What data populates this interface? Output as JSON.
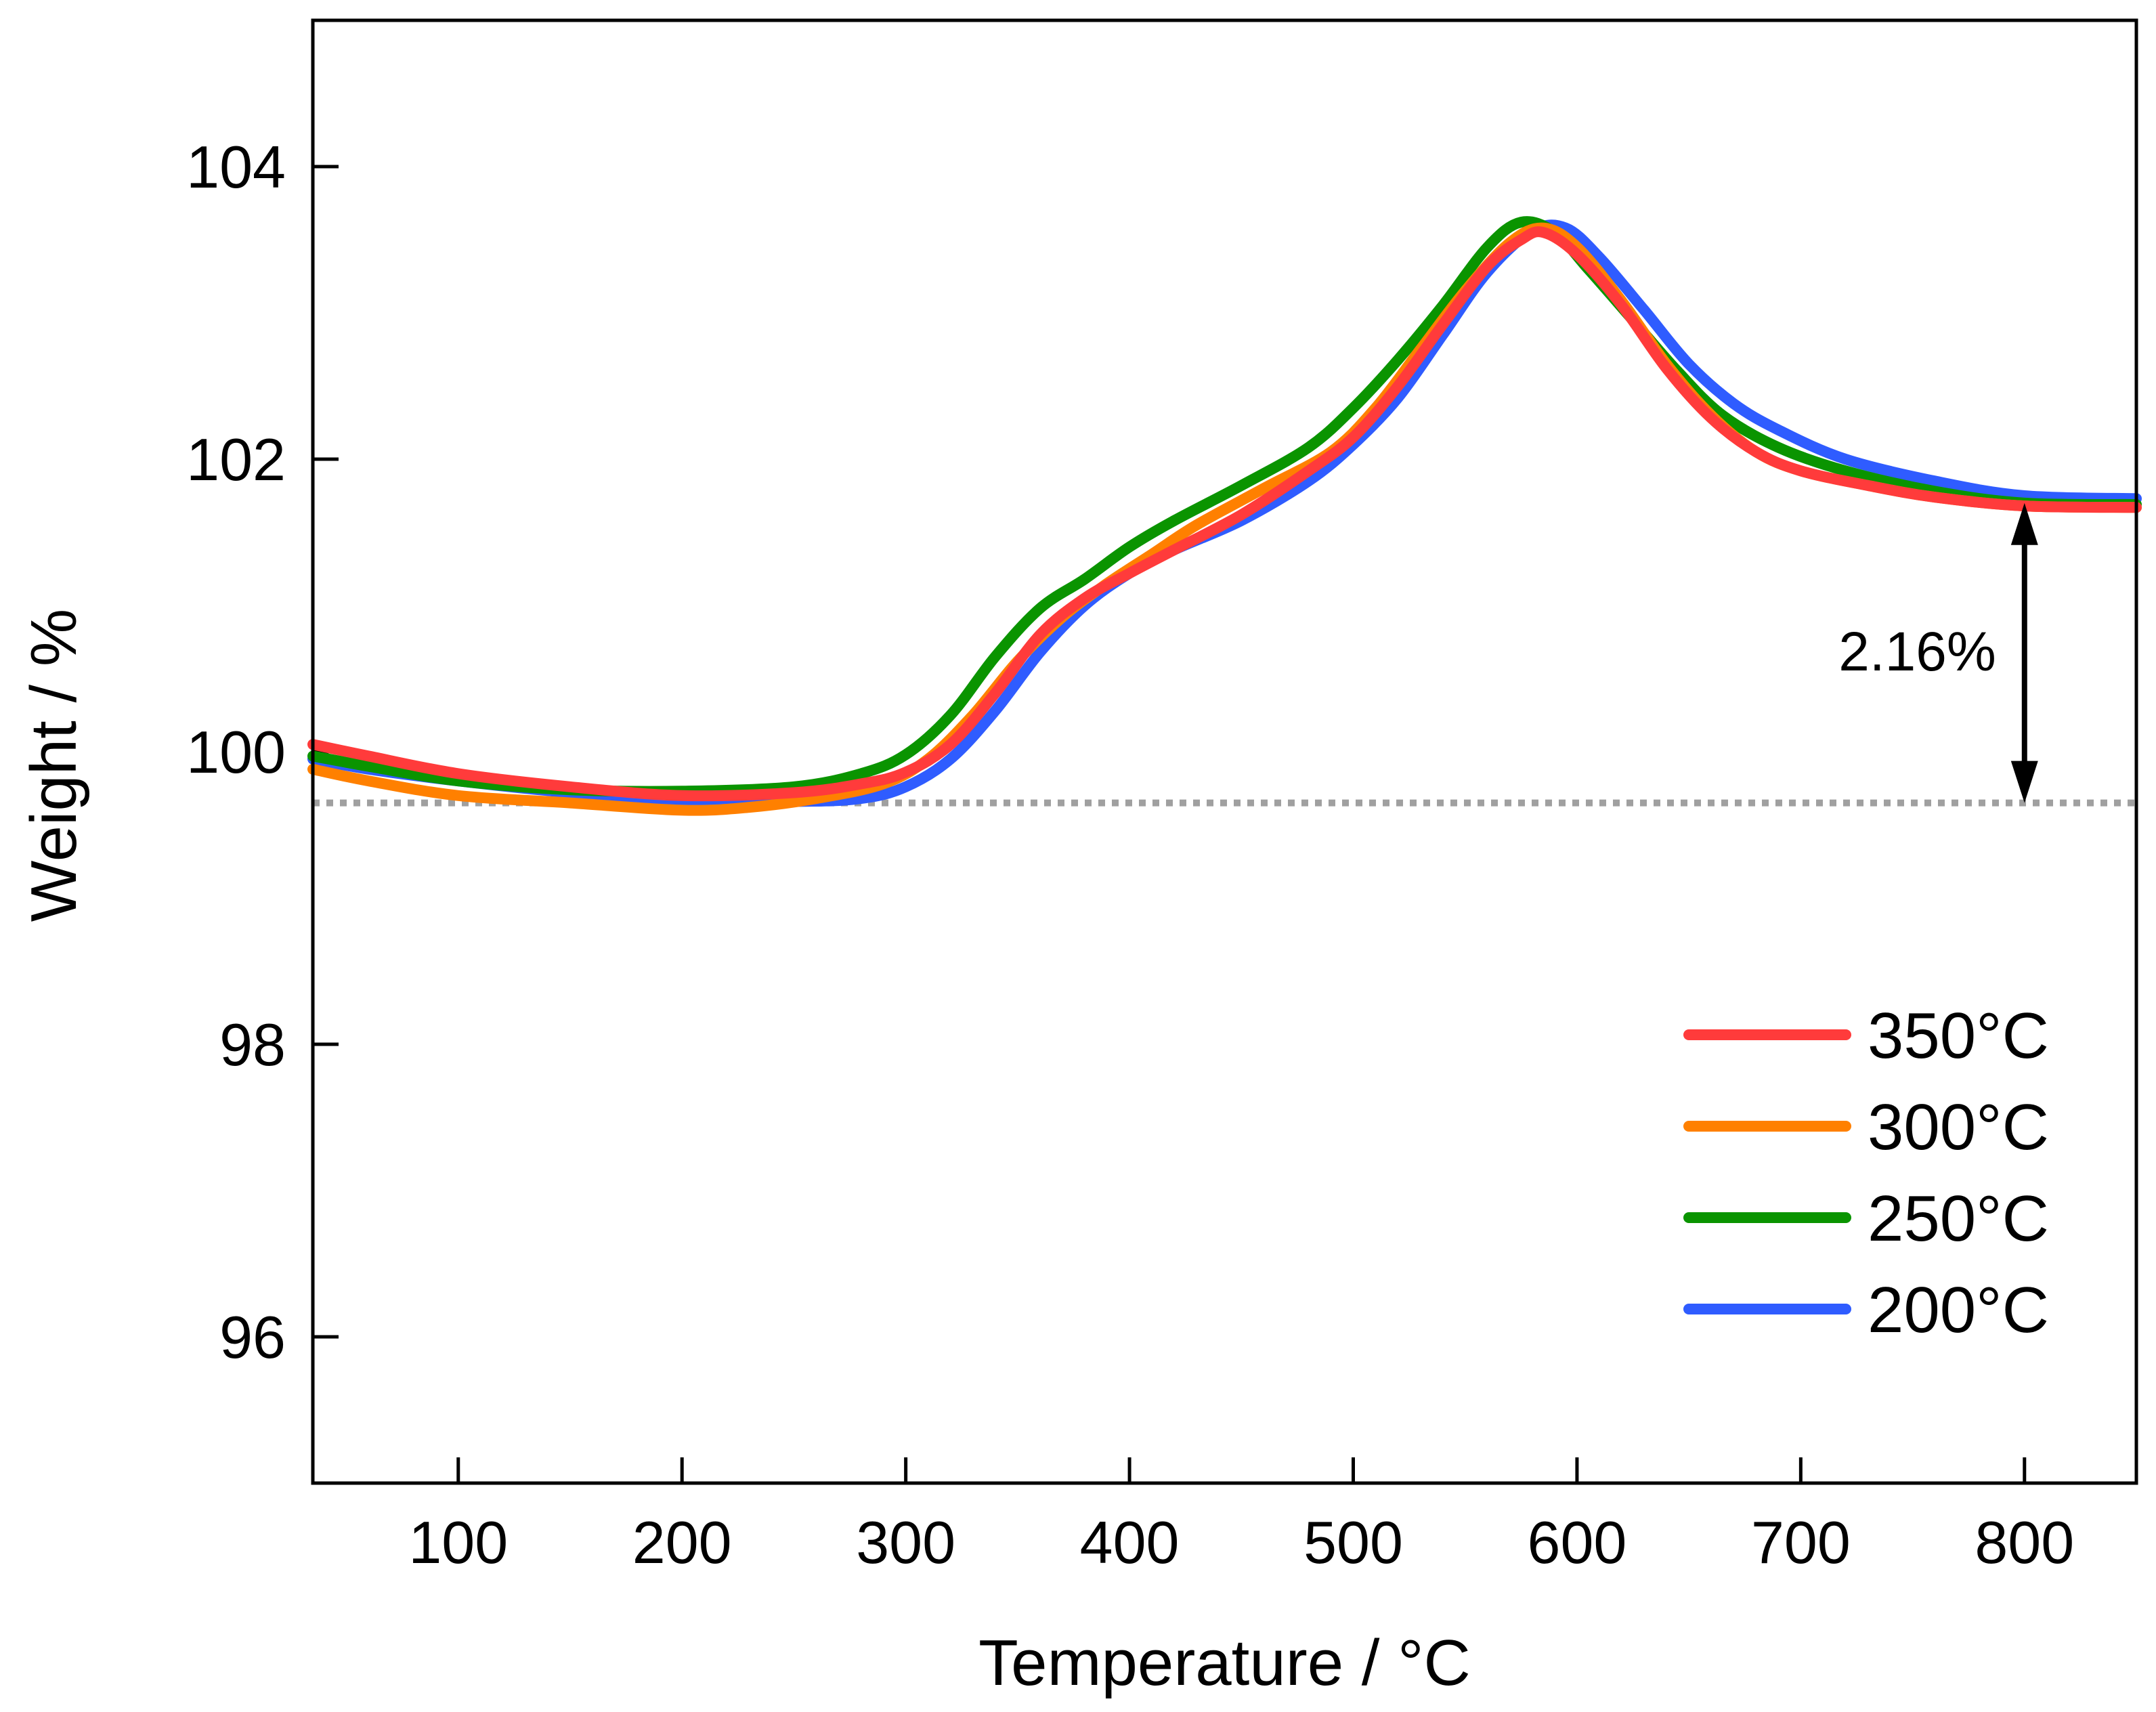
{
  "chart_data": {
    "type": "line",
    "title": "",
    "xlabel": "Temperature / °C",
    "ylabel": "Weight / %",
    "xlim": [
      35,
      850
    ],
    "ylim": [
      95,
      105
    ],
    "xticks": [
      100,
      200,
      300,
      400,
      500,
      600,
      700,
      800
    ],
    "yticks": [
      96,
      98,
      100,
      102,
      104
    ],
    "grid": false,
    "legend_position": "bottom-right",
    "reference_line": {
      "y": 99.65,
      "style": "dotted",
      "color": "#a0a0a0"
    },
    "annotation": {
      "text": "2.16%",
      "x": 800,
      "y_from": 99.65,
      "y_to": 101.7
    },
    "series": [
      {
        "name": "350°C",
        "color": "#ff3b3b",
        "points": [
          [
            35,
            100.05
          ],
          [
            60,
            99.97
          ],
          [
            100,
            99.85
          ],
          [
            150,
            99.76
          ],
          [
            200,
            99.7
          ],
          [
            250,
            99.72
          ],
          [
            280,
            99.78
          ],
          [
            300,
            99.86
          ],
          [
            320,
            100.05
          ],
          [
            340,
            100.4
          ],
          [
            360,
            100.8
          ],
          [
            380,
            101.05
          ],
          [
            400,
            101.22
          ],
          [
            420,
            101.38
          ],
          [
            450,
            101.62
          ],
          [
            480,
            101.92
          ],
          [
            500,
            102.15
          ],
          [
            520,
            102.5
          ],
          [
            540,
            102.92
          ],
          [
            560,
            103.32
          ],
          [
            575,
            103.5
          ],
          [
            585,
            103.55
          ],
          [
            600,
            103.4
          ],
          [
            620,
            103.05
          ],
          [
            640,
            102.62
          ],
          [
            660,
            102.28
          ],
          [
            680,
            102.05
          ],
          [
            700,
            101.92
          ],
          [
            730,
            101.82
          ],
          [
            760,
            101.74
          ],
          [
            800,
            101.68
          ],
          [
            850,
            101.67
          ]
        ]
      },
      {
        "name": "300°C",
        "color": "#ff8000",
        "points": [
          [
            35,
            99.88
          ],
          [
            60,
            99.8
          ],
          [
            100,
            99.7
          ],
          [
            150,
            99.65
          ],
          [
            200,
            99.6
          ],
          [
            230,
            99.62
          ],
          [
            260,
            99.68
          ],
          [
            290,
            99.78
          ],
          [
            310,
            99.95
          ],
          [
            330,
            100.25
          ],
          [
            350,
            100.62
          ],
          [
            370,
            100.92
          ],
          [
            390,
            101.15
          ],
          [
            410,
            101.35
          ],
          [
            430,
            101.55
          ],
          [
            460,
            101.8
          ],
          [
            490,
            102.05
          ],
          [
            510,
            102.35
          ],
          [
            530,
            102.75
          ],
          [
            550,
            103.15
          ],
          [
            570,
            103.48
          ],
          [
            585,
            103.58
          ],
          [
            600,
            103.45
          ],
          [
            620,
            103.08
          ],
          [
            640,
            102.65
          ],
          [
            660,
            102.3
          ],
          [
            680,
            102.05
          ],
          [
            700,
            101.92
          ],
          [
            730,
            101.82
          ],
          [
            760,
            101.74
          ],
          [
            800,
            101.68
          ],
          [
            850,
            101.67
          ]
        ]
      },
      {
        "name": "250°C",
        "color": "#0a9400",
        "points": [
          [
            35,
            99.97
          ],
          [
            60,
            99.9
          ],
          [
            100,
            99.8
          ],
          [
            150,
            99.74
          ],
          [
            200,
            99.73
          ],
          [
            250,
            99.76
          ],
          [
            280,
            99.85
          ],
          [
            300,
            99.98
          ],
          [
            320,
            100.25
          ],
          [
            340,
            100.65
          ],
          [
            360,
            100.98
          ],
          [
            380,
            101.18
          ],
          [
            400,
            101.4
          ],
          [
            420,
            101.58
          ],
          [
            450,
            101.82
          ],
          [
            480,
            102.08
          ],
          [
            500,
            102.35
          ],
          [
            520,
            102.68
          ],
          [
            540,
            103.05
          ],
          [
            560,
            103.45
          ],
          [
            575,
            103.62
          ],
          [
            590,
            103.55
          ],
          [
            605,
            103.3
          ],
          [
            625,
            102.95
          ],
          [
            645,
            102.6
          ],
          [
            665,
            102.3
          ],
          [
            690,
            102.08
          ],
          [
            720,
            101.92
          ],
          [
            760,
            101.78
          ],
          [
            800,
            101.7
          ],
          [
            850,
            101.69
          ]
        ]
      },
      {
        "name": "200°C",
        "color": "#2f5cff",
        "points": [
          [
            35,
            99.95
          ],
          [
            60,
            99.88
          ],
          [
            100,
            99.8
          ],
          [
            150,
            99.72
          ],
          [
            200,
            99.67
          ],
          [
            250,
            99.66
          ],
          [
            280,
            99.68
          ],
          [
            300,
            99.76
          ],
          [
            320,
            99.95
          ],
          [
            340,
            100.28
          ],
          [
            360,
            100.68
          ],
          [
            380,
            101.0
          ],
          [
            400,
            101.22
          ],
          [
            420,
            101.38
          ],
          [
            450,
            101.58
          ],
          [
            480,
            101.85
          ],
          [
            500,
            102.1
          ],
          [
            520,
            102.42
          ],
          [
            540,
            102.85
          ],
          [
            560,
            103.28
          ],
          [
            580,
            103.56
          ],
          [
            595,
            103.58
          ],
          [
            610,
            103.38
          ],
          [
            630,
            103.02
          ],
          [
            650,
            102.65
          ],
          [
            670,
            102.38
          ],
          [
            690,
            102.2
          ],
          [
            720,
            102.0
          ],
          [
            760,
            101.85
          ],
          [
            800,
            101.75
          ],
          [
            850,
            101.73
          ]
        ]
      }
    ]
  }
}
